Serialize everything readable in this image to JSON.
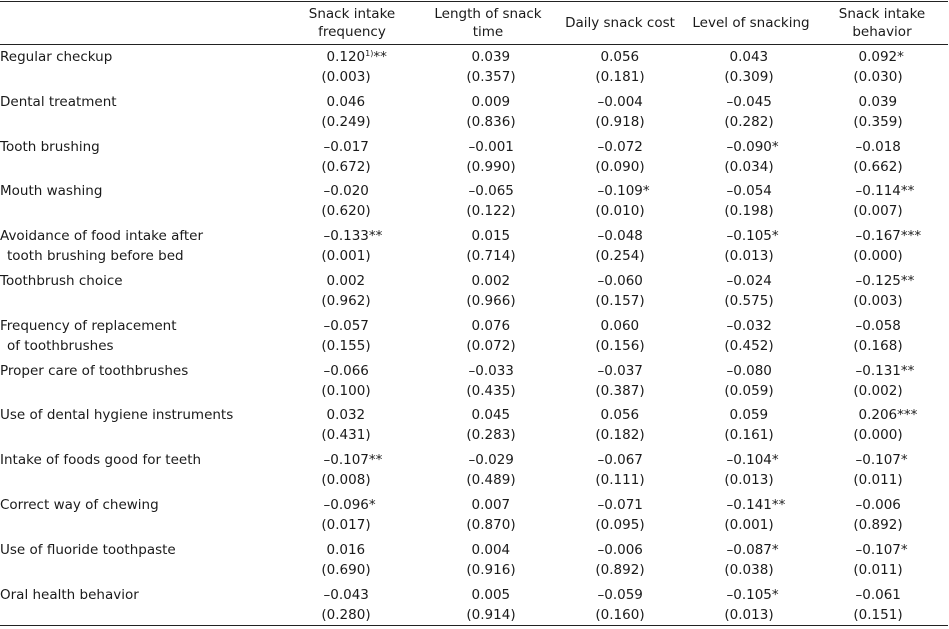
{
  "table": {
    "headers": [
      {
        "line1": "Snack intake",
        "line2": "frequency"
      },
      {
        "line1": "Length of snack",
        "line2": "time"
      },
      {
        "line1": "Daily snack cost",
        "line2": ""
      },
      {
        "line1": "Level of snacking",
        "line2": ""
      },
      {
        "line1": "Snack intake",
        "line2": "behavior"
      }
    ],
    "rows": [
      {
        "label1": "Regular checkup",
        "label2": "",
        "cells": [
          {
            "coef": "0.120",
            "sup": "1)",
            "sig": "**",
            "p": "(0.003)"
          },
          {
            "coef": "0.039",
            "sup": "",
            "sig": "",
            "p": "(0.357)"
          },
          {
            "coef": "0.056",
            "sup": "",
            "sig": "",
            "p": "(0.181)"
          },
          {
            "coef": "0.043",
            "sup": "",
            "sig": "",
            "p": "(0.309)"
          },
          {
            "coef": "0.092",
            "sup": "",
            "sig": "*",
            "p": "(0.030)"
          }
        ]
      },
      {
        "label1": "Dental treatment",
        "label2": "",
        "cells": [
          {
            "coef": "0.046",
            "sup": "",
            "sig": "",
            "p": "(0.249)"
          },
          {
            "coef": "0.009",
            "sup": "",
            "sig": "",
            "p": "(0.836)"
          },
          {
            "coef": "–0.004",
            "sup": "",
            "sig": "",
            "p": "(0.918)"
          },
          {
            "coef": "–0.045",
            "sup": "",
            "sig": "",
            "p": "(0.282)"
          },
          {
            "coef": "0.039",
            "sup": "",
            "sig": "",
            "p": "(0.359)"
          }
        ]
      },
      {
        "label1": "Tooth brushing",
        "label2": "",
        "cells": [
          {
            "coef": "–0.017",
            "sup": "",
            "sig": "",
            "p": "(0.672)"
          },
          {
            "coef": "–0.001",
            "sup": "",
            "sig": "",
            "p": "(0.990)"
          },
          {
            "coef": "–0.072",
            "sup": "",
            "sig": "",
            "p": "(0.090)"
          },
          {
            "coef": "–0.090",
            "sup": "",
            "sig": "*",
            "p": "(0.034)"
          },
          {
            "coef": "–0.018",
            "sup": "",
            "sig": "",
            "p": "(0.662)"
          }
        ]
      },
      {
        "label1": "Mouth washing",
        "label2": "",
        "cells": [
          {
            "coef": "–0.020",
            "sup": "",
            "sig": "",
            "p": "(0.620)"
          },
          {
            "coef": "–0.065",
            "sup": "",
            "sig": "",
            "p": "(0.122)"
          },
          {
            "coef": "–0.109",
            "sup": "",
            "sig": "*",
            "p": "(0.010)"
          },
          {
            "coef": "–0.054",
            "sup": "",
            "sig": "",
            "p": "(0.198)"
          },
          {
            "coef": "–0.114",
            "sup": "",
            "sig": "**",
            "p": "(0.007)"
          }
        ]
      },
      {
        "label1": "Avoidance of food intake after",
        "label2": "tooth brushing before bed",
        "cells": [
          {
            "coef": "–0.133",
            "sup": "",
            "sig": "**",
            "p": "(0.001)"
          },
          {
            "coef": "0.015",
            "sup": "",
            "sig": "",
            "p": "(0.714)"
          },
          {
            "coef": "–0.048",
            "sup": "",
            "sig": "",
            "p": "(0.254)"
          },
          {
            "coef": "–0.105",
            "sup": "",
            "sig": "*",
            "p": "(0.013)"
          },
          {
            "coef": "–0.167",
            "sup": "",
            "sig": "***",
            "p": "(0.000)"
          }
        ]
      },
      {
        "label1": "Toothbrush choice",
        "label2": "",
        "cells": [
          {
            "coef": "0.002",
            "sup": "",
            "sig": "",
            "p": "(0.962)"
          },
          {
            "coef": "0.002",
            "sup": "",
            "sig": "",
            "p": "(0.966)"
          },
          {
            "coef": "–0.060",
            "sup": "",
            "sig": "",
            "p": "(0.157)"
          },
          {
            "coef": "–0.024",
            "sup": "",
            "sig": "",
            "p": "(0.575)"
          },
          {
            "coef": "–0.125",
            "sup": "",
            "sig": "**",
            "p": "(0.003)"
          }
        ]
      },
      {
        "label1": "Frequency of replacement",
        "label2": "of toothbrushes",
        "cells": [
          {
            "coef": "–0.057",
            "sup": "",
            "sig": "",
            "p": "(0.155)"
          },
          {
            "coef": "0.076",
            "sup": "",
            "sig": "",
            "p": "(0.072)"
          },
          {
            "coef": "0.060",
            "sup": "",
            "sig": "",
            "p": "(0.156)"
          },
          {
            "coef": "–0.032",
            "sup": "",
            "sig": "",
            "p": "(0.452)"
          },
          {
            "coef": "–0.058",
            "sup": "",
            "sig": "",
            "p": "(0.168)"
          }
        ]
      },
      {
        "label1": "Proper care of toothbrushes",
        "label2": "",
        "cells": [
          {
            "coef": "–0.066",
            "sup": "",
            "sig": "",
            "p": "(0.100)"
          },
          {
            "coef": "–0.033",
            "sup": "",
            "sig": "",
            "p": "(0.435)"
          },
          {
            "coef": "–0.037",
            "sup": "",
            "sig": "",
            "p": "(0.387)"
          },
          {
            "coef": "–0.080",
            "sup": "",
            "sig": "",
            "p": "(0.059)"
          },
          {
            "coef": "–0.131",
            "sup": "",
            "sig": "**",
            "p": "(0.002)"
          }
        ]
      },
      {
        "label1": "Use of dental hygiene instruments",
        "label2": "",
        "cells": [
          {
            "coef": "0.032",
            "sup": "",
            "sig": "",
            "p": "(0.431)"
          },
          {
            "coef": "0.045",
            "sup": "",
            "sig": "",
            "p": "(0.283)"
          },
          {
            "coef": "0.056",
            "sup": "",
            "sig": "",
            "p": "(0.182)"
          },
          {
            "coef": "0.059",
            "sup": "",
            "sig": "",
            "p": "(0.161)"
          },
          {
            "coef": "0.206",
            "sup": "",
            "sig": "***",
            "p": "(0.000)"
          }
        ]
      },
      {
        "label1": "Intake of foods good for teeth",
        "label2": "",
        "cells": [
          {
            "coef": "–0.107",
            "sup": "",
            "sig": "**",
            "p": "(0.008)"
          },
          {
            "coef": "–0.029",
            "sup": "",
            "sig": "",
            "p": "(0.489)"
          },
          {
            "coef": "–0.067",
            "sup": "",
            "sig": "",
            "p": "(0.111)"
          },
          {
            "coef": "–0.104",
            "sup": "",
            "sig": "*",
            "p": "(0.013)"
          },
          {
            "coef": "–0.107",
            "sup": "",
            "sig": "*",
            "p": "(0.011)"
          }
        ]
      },
      {
        "label1": "Correct way of chewing",
        "label2": "",
        "cells": [
          {
            "coef": "–0.096",
            "sup": "",
            "sig": "*",
            "p": "(0.017)"
          },
          {
            "coef": "0.007",
            "sup": "",
            "sig": "",
            "p": "(0.870)"
          },
          {
            "coef": "–0.071",
            "sup": "",
            "sig": "",
            "p": "(0.095)"
          },
          {
            "coef": "–0.141",
            "sup": "",
            "sig": "**",
            "p": "(0.001)"
          },
          {
            "coef": "–0.006",
            "sup": "",
            "sig": "",
            "p": "(0.892)"
          }
        ]
      },
      {
        "label1": "Use of fluoride toothpaste",
        "label2": "",
        "cells": [
          {
            "coef": "0.016",
            "sup": "",
            "sig": "",
            "p": "(0.690)"
          },
          {
            "coef": "0.004",
            "sup": "",
            "sig": "",
            "p": "(0.916)"
          },
          {
            "coef": "–0.006",
            "sup": "",
            "sig": "",
            "p": "(0.892)"
          },
          {
            "coef": "–0.087",
            "sup": "",
            "sig": "*",
            "p": "(0.038)"
          },
          {
            "coef": "–0.107",
            "sup": "",
            "sig": "*",
            "p": "(0.011)"
          }
        ]
      },
      {
        "label1": "Oral health behavior",
        "label2": "",
        "cells": [
          {
            "coef": "–0.043",
            "sup": "",
            "sig": "",
            "p": "(0.280)"
          },
          {
            "coef": "0.005",
            "sup": "",
            "sig": "",
            "p": "(0.914)"
          },
          {
            "coef": "–0.059",
            "sup": "",
            "sig": "",
            "p": "(0.160)"
          },
          {
            "coef": "–0.105",
            "sup": "",
            "sig": "*",
            "p": "(0.013)"
          },
          {
            "coef": "–0.061",
            "sup": "",
            "sig": "",
            "p": "(0.151)"
          }
        ]
      }
    ]
  }
}
